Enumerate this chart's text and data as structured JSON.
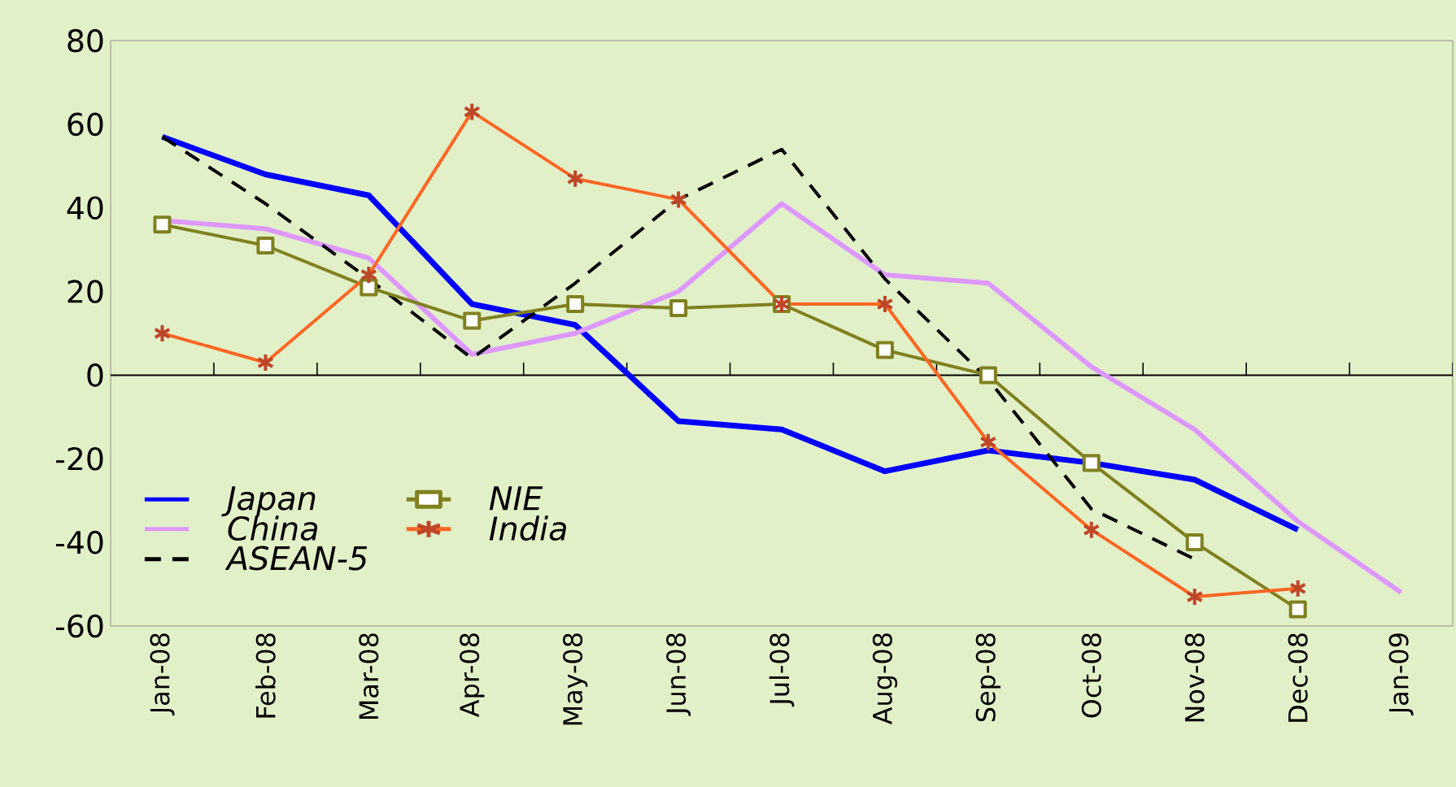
{
  "chart_data": {
    "type": "line",
    "categories": [
      "Jan-08",
      "Feb-08",
      "Mar-08",
      "Apr-08",
      "May-08",
      "Jun-08",
      "Jul-08",
      "Aug-08",
      "Sep-08",
      "Oct-08",
      "Nov-08",
      "Dec-08",
      "Jan-09"
    ],
    "series": [
      {
        "name": "Japan",
        "color": "#0000ff",
        "marker": "none",
        "line_style": "solid",
        "values": [
          57,
          48,
          43,
          17,
          12,
          -11,
          -13,
          -23,
          -18,
          -21,
          -25,
          -37,
          null
        ]
      },
      {
        "name": "China",
        "color": "#dd99ff",
        "marker": "none",
        "line_style": "solid",
        "values": [
          37,
          35,
          28,
          5,
          10,
          20,
          41,
          24,
          22,
          2,
          -13,
          -35,
          -52
        ]
      },
      {
        "name": "ASEAN-5",
        "color": "#000000",
        "marker": "none",
        "line_style": "dashed",
        "values": [
          57,
          41,
          23,
          4,
          22,
          42,
          54,
          23,
          -1,
          -32,
          -44,
          null,
          null
        ]
      },
      {
        "name": "NIE",
        "color": "#808020",
        "marker": "square",
        "line_style": "solid",
        "values": [
          36,
          31,
          21,
          13,
          17,
          16,
          17,
          6,
          0,
          -21,
          -40,
          -56,
          null
        ]
      },
      {
        "name": "India",
        "color": "#ff6622",
        "marker": "cross",
        "line_style": "solid",
        "values": [
          10,
          3,
          24,
          63,
          47,
          42,
          17,
          17,
          -16,
          -37,
          -53,
          -51,
          null
        ]
      }
    ],
    "ylim": [
      -60,
      80
    ],
    "yticks": [
      -60,
      -40,
      -20,
      0,
      20,
      40,
      60,
      80
    ],
    "ref_lines": [
      {
        "axis": "y",
        "value": 0,
        "color": "#000000"
      }
    ],
    "grid": false,
    "legend": "bottom left"
  }
}
